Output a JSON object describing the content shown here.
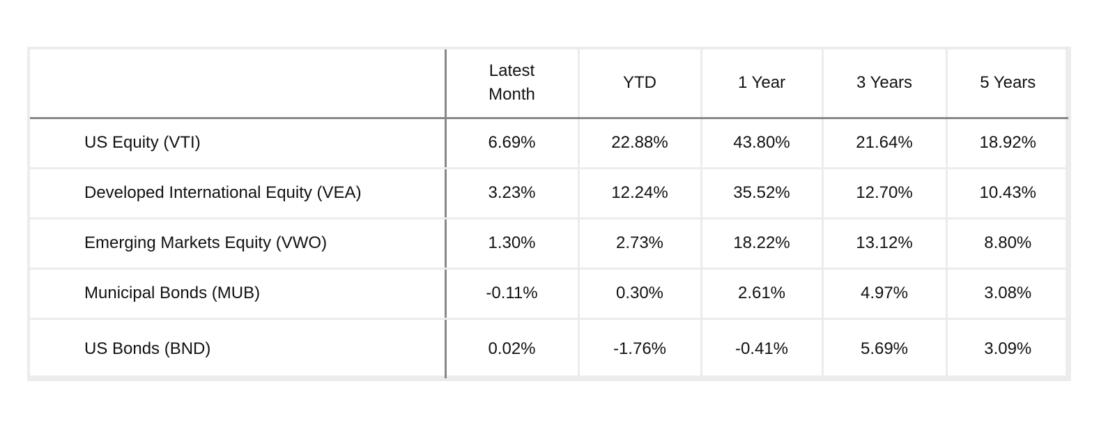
{
  "chart_data": {
    "type": "table",
    "columns": [
      "",
      "Latest Month",
      "YTD",
      "1 Year",
      "3 Years",
      "5 Years"
    ],
    "rows": [
      {
        "label": "US Equity (VTI)",
        "values": [
          "6.69%",
          "22.88%",
          "43.80%",
          "21.64%",
          "18.92%"
        ]
      },
      {
        "label": "Developed International Equity (VEA)",
        "values": [
          "3.23%",
          "12.24%",
          "35.52%",
          "12.70%",
          "10.43%"
        ]
      },
      {
        "label": "Emerging Markets Equity (VWO)",
        "values": [
          "1.30%",
          "2.73%",
          "18.22%",
          "13.12%",
          "8.80%"
        ]
      },
      {
        "label": "Municipal Bonds (MUB)",
        "values": [
          "-0.11%",
          "0.30%",
          "2.61%",
          "4.97%",
          "3.08%"
        ]
      },
      {
        "label": "US Bonds (BND)",
        "values": [
          "0.02%",
          "-1.76%",
          "-0.41%",
          "5.69%",
          "3.09%"
        ]
      }
    ]
  }
}
